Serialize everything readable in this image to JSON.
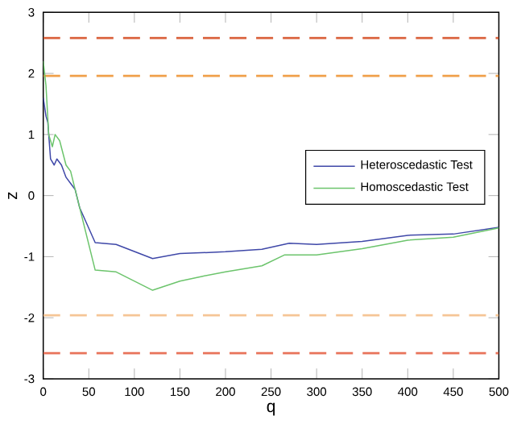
{
  "chart_data": {
    "type": "line",
    "xlabel": "q",
    "ylabel": "z",
    "xlim": [
      0,
      500
    ],
    "ylim": [
      -3,
      3
    ],
    "xticks": [
      0,
      50,
      100,
      150,
      200,
      250,
      300,
      350,
      400,
      450,
      500
    ],
    "yticks": [
      -3,
      -2,
      -1,
      0,
      1,
      2,
      3
    ],
    "legend": "right",
    "grid": false,
    "series": [
      {
        "name": "Heteroscedastic Test",
        "color": "#3f48a8",
        "x": [
          0,
          3,
          5,
          8,
          12,
          15,
          20,
          25,
          30,
          35,
          40,
          57,
          80,
          120,
          150,
          200,
          240,
          270,
          300,
          350,
          400,
          450,
          500
        ],
        "values": [
          1.6,
          1.3,
          1.2,
          0.6,
          0.5,
          0.6,
          0.5,
          0.3,
          0.2,
          0.1,
          -0.2,
          -0.77,
          -0.8,
          -1.03,
          -0.95,
          -0.92,
          -0.88,
          -0.78,
          -0.8,
          -0.75,
          -0.65,
          -0.63,
          -0.52
        ]
      },
      {
        "name": "Homoscedastic Test",
        "color": "#6cc46c",
        "x": [
          0,
          3,
          6,
          10,
          13,
          18,
          25,
          30,
          35,
          57,
          80,
          120,
          150,
          175,
          200,
          240,
          265,
          300,
          350,
          400,
          450,
          500
        ],
        "values": [
          2.2,
          1.8,
          1.0,
          0.8,
          1.0,
          0.9,
          0.5,
          0.4,
          0.1,
          -1.22,
          -1.25,
          -1.55,
          -1.4,
          -1.32,
          -1.25,
          -1.15,
          -0.97,
          -0.97,
          -0.87,
          -0.73,
          -0.68,
          -0.53
        ]
      }
    ],
    "ref_lines": [
      {
        "axis": "y",
        "value": 2.58,
        "color": "#d9603a",
        "line_style": "dashed"
      },
      {
        "axis": "y",
        "value": 1.96,
        "color": "#f0a04a",
        "line_style": "dashed"
      },
      {
        "axis": "y",
        "value": -1.96,
        "color": "#f5c596",
        "line_style": "dashed"
      },
      {
        "axis": "y",
        "value": -2.58,
        "color": "#e8735a",
        "line_style": "dashed"
      }
    ]
  }
}
